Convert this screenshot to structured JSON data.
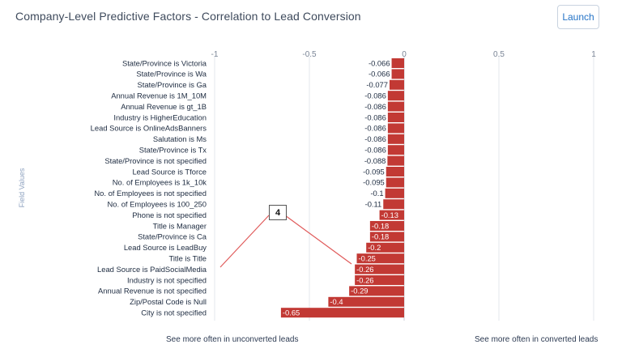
{
  "header": {
    "title": "Company-Level Predictive Factors - Correlation to Lead Conversion",
    "launch_label": "Launch"
  },
  "callout": {
    "label": "4"
  },
  "footer": {
    "left_note": "See more often in unconverted leads",
    "right_note": "See more often in converted leads"
  },
  "colors": {
    "bar": "#c23934",
    "grid": "#e3e7ee",
    "zero_line": "#c9ced6",
    "callout_line": "#e05a5a"
  },
  "chart_data": {
    "type": "bar",
    "orientation": "horizontal",
    "title": "Company-Level Predictive Factors - Correlation to Lead Conversion",
    "ylabel": "Field Values",
    "xlabel": "",
    "xlim": [
      -1,
      1
    ],
    "xticks": [
      -1,
      -0.5,
      0,
      0.5,
      1
    ],
    "xtick_labels": [
      "-1",
      "-0.5",
      "0",
      "0.5",
      "1"
    ],
    "grid": true,
    "categories": [
      "State/Province is Victoria",
      "State/Province is Wa",
      "State/Province is Ga",
      "Annual Revenue is 1M_10M",
      "Annual Revenue is gt_1B",
      "Industry is HigherEducation",
      "Lead Source is OnlineAdsBanners",
      "Salutation is Ms",
      "State/Province is Tx",
      "State/Province is not specified",
      "Lead Source is Tforce",
      "No. of Employees is 1k_10k",
      "No. of Employees is not specified",
      "No. of Employees is 100_250",
      "Phone is not specified",
      "Title is Manager",
      "State/Province is Ca",
      "Lead Source is LeadBuy",
      "Title is Title",
      "Lead Source is PaidSocialMedia",
      "Industry is not specified",
      "Annual Revenue is not specified",
      "Zip/Postal Code is Null",
      "City is not specified"
    ],
    "values": [
      -0.066,
      -0.066,
      -0.077,
      -0.086,
      -0.086,
      -0.086,
      -0.086,
      -0.086,
      -0.086,
      -0.088,
      -0.095,
      -0.095,
      -0.1,
      -0.11,
      -0.13,
      -0.18,
      -0.18,
      -0.2,
      -0.25,
      -0.26,
      -0.26,
      -0.29,
      -0.4,
      -0.65
    ],
    "value_labels": [
      "-0.066",
      "-0.066",
      "-0.077",
      "-0.086",
      "-0.086",
      "-0.086",
      "-0.086",
      "-0.086",
      "-0.086",
      "-0.088",
      "-0.095",
      "-0.095",
      "-0.1",
      "-0.11",
      "-0.13",
      "-0.18",
      "-0.18",
      "-0.2",
      "-0.25",
      "-0.26",
      "-0.26",
      "-0.29",
      "-0.4",
      "-0.65"
    ]
  }
}
